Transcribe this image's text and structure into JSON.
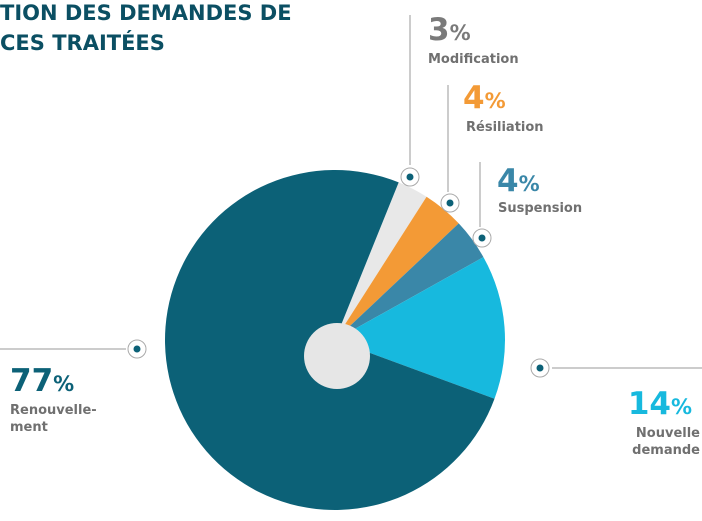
{
  "chart_data": {
    "type": "pie",
    "title": [
      "TION DES DEMANDES DE",
      "CES TRAITÉES"
    ],
    "categories": [
      [
        "Modification"
      ],
      [
        "Résiliation"
      ],
      [
        "Suspension"
      ],
      [
        "Nouvelle",
        "demande"
      ],
      [
        "Renouvelle-",
        "ment"
      ]
    ],
    "values": [
      3,
      4,
      4,
      14,
      77
    ],
    "value_labels": [
      "3%",
      "4%",
      "4%",
      "14%",
      "77%"
    ],
    "colors": [
      "#e8e8e8",
      "#f39a36",
      "#3a87a8",
      "#17b9de",
      "#0c6177"
    ],
    "label_colors": [
      "#7a7a7a",
      "#f39a36",
      "#3a87a8",
      "#17b9de",
      "#0c6177"
    ]
  }
}
